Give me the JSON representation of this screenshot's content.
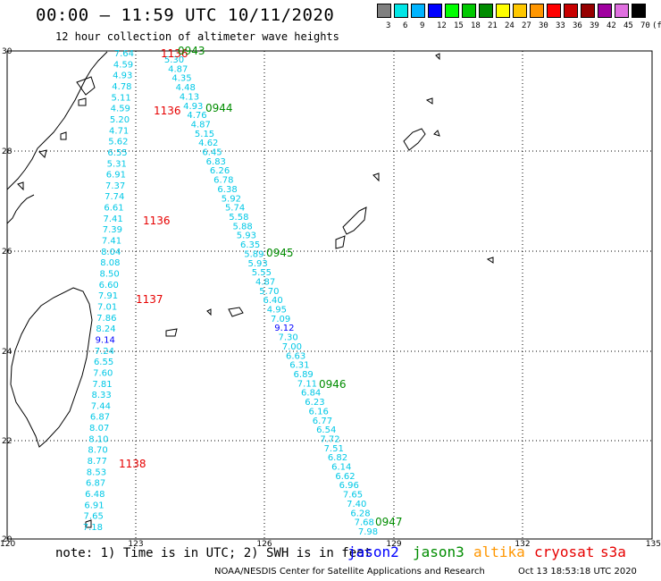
{
  "header": {
    "title": "00:00 — 11:59 UTC 10/11/2020",
    "subtitle": "12 hour collection of altimeter wave heights"
  },
  "color_scale": {
    "unit": "(ft)",
    "labels": [
      "3",
      "6",
      "9",
      "12",
      "15",
      "18",
      "21",
      "24",
      "27",
      "30",
      "33",
      "36",
      "39",
      "42",
      "45",
      "70"
    ],
    "colors": [
      "#808080",
      "#00e6e6",
      "#00b4ff",
      "#0000ff",
      "#00ff00",
      "#00c800",
      "#008c00",
      "#ffff00",
      "#ffc800",
      "#ff9600",
      "#ff0000",
      "#c80000",
      "#960000",
      "#a000a0",
      "#e070e0",
      "#000000"
    ]
  },
  "map": {
    "lat_labels": [
      "30",
      "28",
      "26",
      "24",
      "22",
      "20"
    ],
    "lon_labels": [
      "120",
      "123",
      "126",
      "129",
      "132",
      "135"
    ]
  },
  "track_colors": {
    "swh_cyan": "#00c8e6",
    "swh_blue": "#0000ff",
    "cryosat": "#e60000",
    "jason3": "#008c00"
  },
  "track_west": [
    "7.64",
    "4.59",
    "4.93",
    "4.78",
    "5.11",
    "4.59",
    "5.20",
    "4.71",
    "5.62",
    "6.55",
    "5.31",
    "6.91",
    "7.37",
    "7.74",
    "6.61",
    "7.41",
    "7.39",
    "7.41",
    "8.04",
    "8.08",
    "8.50",
    "6.60",
    "7.91",
    "7.01",
    "7.86",
    "8.24",
    "9.14",
    "7.24",
    "6.55",
    "7.60",
    "7.81",
    "8.33",
    "7.44",
    "6.87",
    "8.07",
    "8.10",
    "8.70",
    "8.77",
    "8.53",
    "6.87",
    "6.48",
    "6.91",
    "7.65",
    "7.18"
  ],
  "track_east": [
    "5.30",
    "4.87",
    "4.35",
    "4.48",
    "4.13",
    "4.93",
    "4.76",
    "4.87",
    "5.15",
    "4.62",
    "6.45",
    "6.83",
    "6.26",
    "6.78",
    "6.38",
    "5.92",
    "5.74",
    "5.58",
    "5.88",
    "5.93",
    "6.35",
    "5.89",
    "5.93",
    "5.55",
    "4.87",
    "5.70",
    "6.40",
    "4.95",
    "7.09",
    "9.12",
    "7.30",
    "7.00",
    "6.63",
    "6.31",
    "6.89",
    "7.11",
    "6.84",
    "6.23",
    "6.16",
    "6.77",
    "6.54",
    "7.72",
    "7.51",
    "6.82",
    "6.14",
    "6.62",
    "6.96",
    "7.65",
    "7.40",
    "6.28",
    "7.68",
    "7.98"
  ],
  "time_labels_west": [
    "1136",
    "1136",
    "1136",
    "1137",
    "1138"
  ],
  "time_labels_east": [
    "0943",
    "0944",
    "0945",
    "0946",
    "0947"
  ],
  "legend": {
    "note": "note: 1) Time is in UTC; 2) SWH is in feet",
    "missions": [
      {
        "name": "jason2",
        "color": "#0000ff"
      },
      {
        "name": "jason3",
        "color": "#008c00"
      },
      {
        "name": "altika",
        "color": "#ff9600"
      },
      {
        "name": "cryosat",
        "color": "#e60000"
      },
      {
        "name": "s3a",
        "color": "#e60000"
      }
    ]
  },
  "credits": {
    "agency": "NOAA/NESDIS Center for Satellite Applications and Research",
    "timestamp": "Oct 13 18:53:18 UTC 2020"
  }
}
